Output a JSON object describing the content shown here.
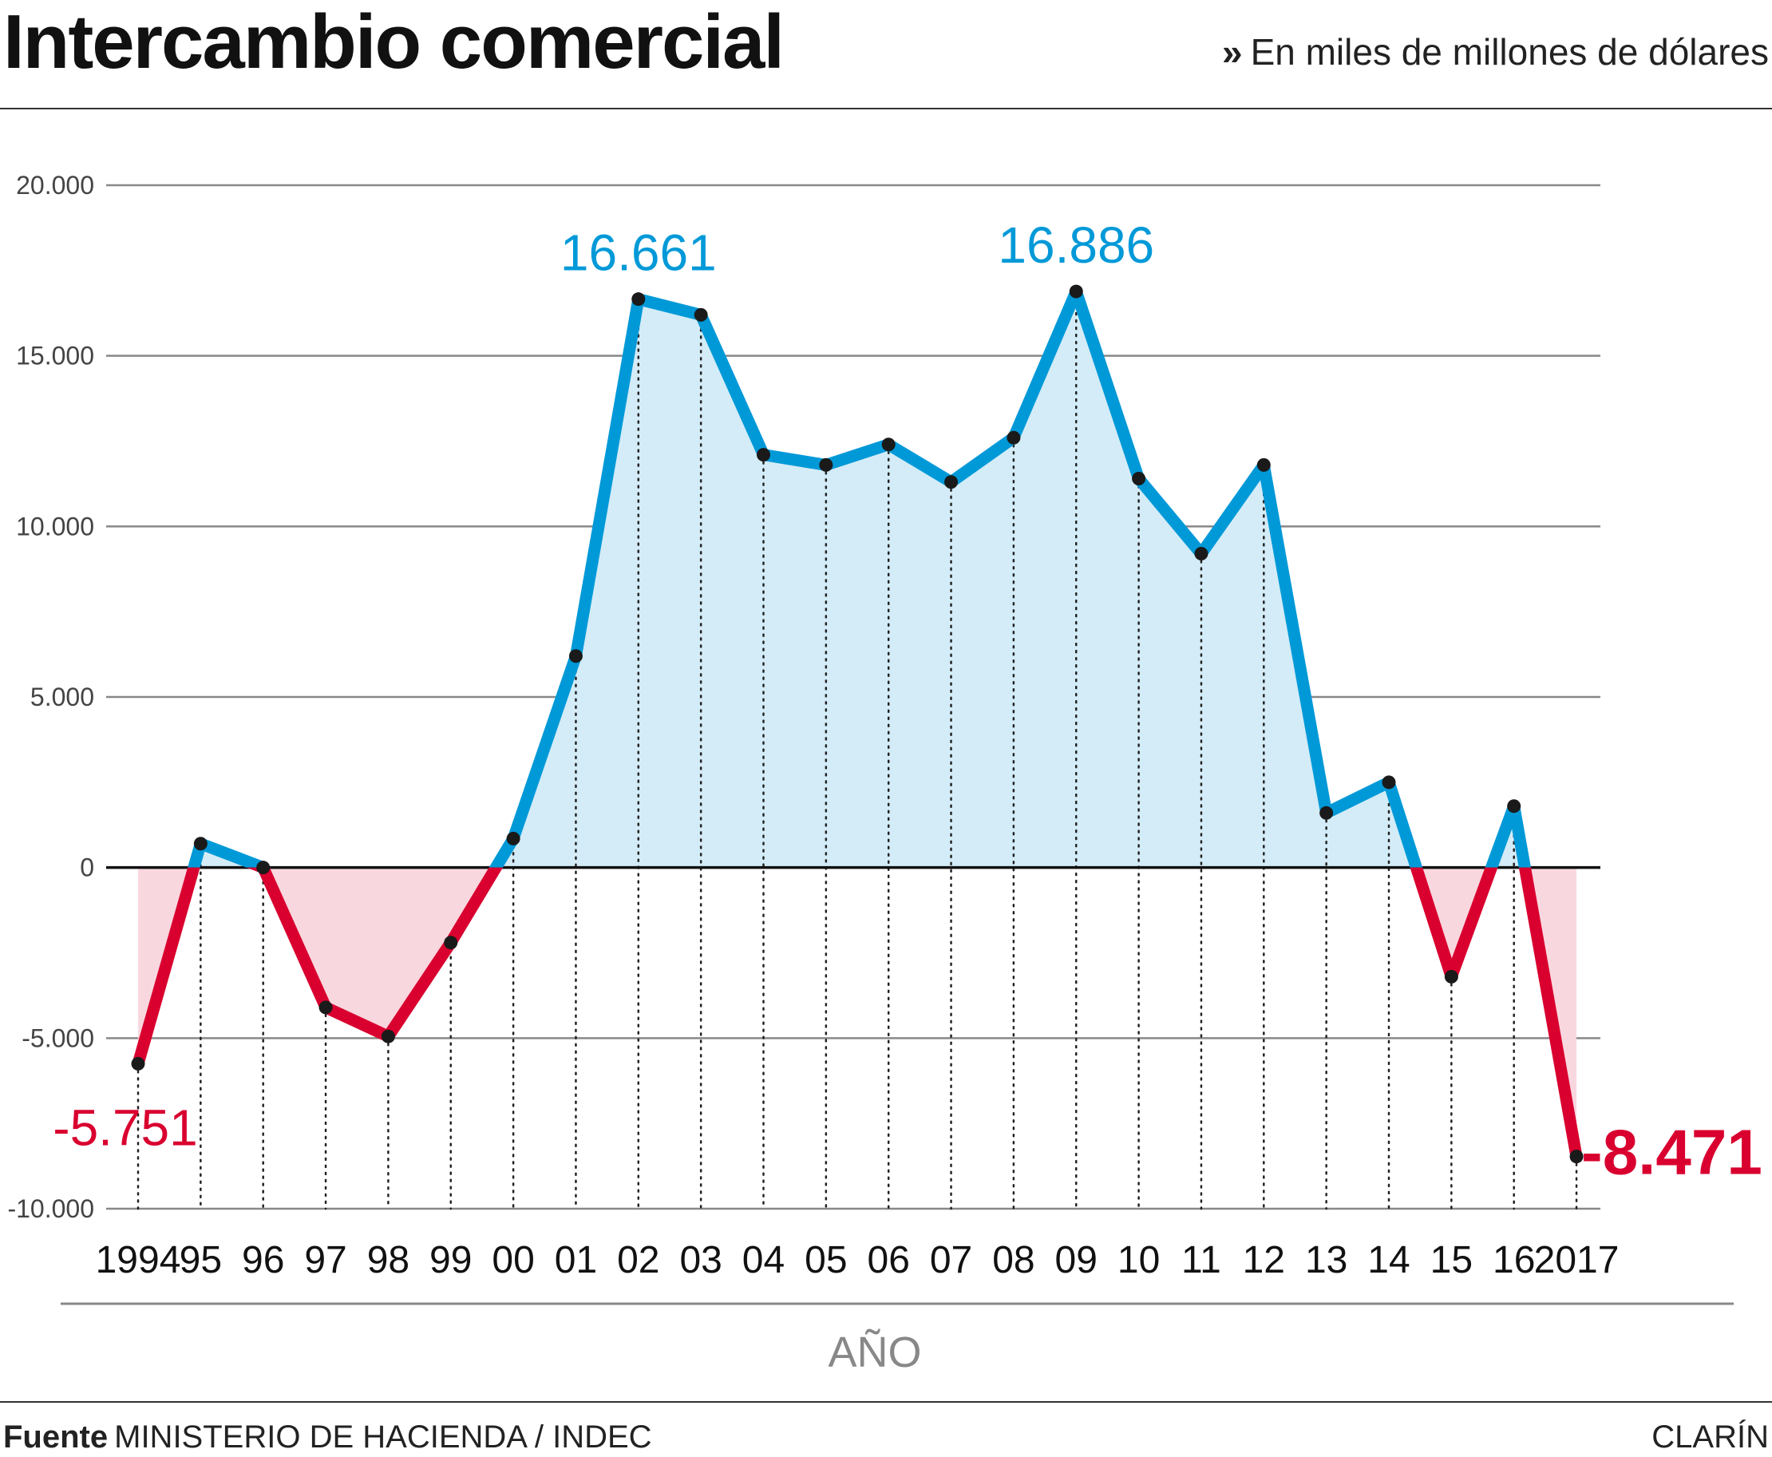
{
  "header": {
    "title": "Intercambio comercial",
    "subtitle_marker": "»",
    "subtitle": "En miles de millones de dólares"
  },
  "footer": {
    "source_label": "Fuente",
    "source_text": "MINISTERIO DE HACIENDA  /  INDEC",
    "credit": "CLARÍN"
  },
  "colors": {
    "positive_line": "#0099d8",
    "positive_fill": "#d3ecf7",
    "negative_line": "#d9002f",
    "negative_fill": "#f9d7df",
    "gridline": "#888888",
    "zero_line": "#111111",
    "point": "#1a1a1a"
  },
  "chart_data": {
    "type": "area",
    "title": "Intercambio comercial",
    "subtitle": "En miles de millones de dólares",
    "xlabel": "AÑO",
    "ylabel": "",
    "ylim": [
      -10000,
      20000
    ],
    "yticks": [
      20000,
      15000,
      10000,
      5000,
      0,
      -5000,
      -10000
    ],
    "ytick_labels": [
      "20.000",
      "15.000",
      "10.000",
      "5.000",
      "0",
      "-5.000",
      "-10.000"
    ],
    "grid": true,
    "categories": [
      "1994",
      "95",
      "96",
      "97",
      "98",
      "99",
      "00",
      "01",
      "02",
      "03",
      "04",
      "05",
      "06",
      "07",
      "08",
      "09",
      "10",
      "11",
      "12",
      "13",
      "14",
      "15",
      "16",
      "2017"
    ],
    "values": [
      -5751,
      700,
      0,
      -4100,
      -4950,
      -2200,
      850,
      6200,
      16661,
      16200,
      12100,
      11800,
      12400,
      11300,
      12600,
      16886,
      11400,
      9200,
      11800,
      1600,
      2500,
      -3200,
      1800,
      -8471
    ],
    "annotations": [
      {
        "index": 0,
        "label": "-5.751"
      },
      {
        "index": 8,
        "label": "16.661"
      },
      {
        "index": 15,
        "label": "16.886"
      },
      {
        "index": 23,
        "label": "-8.471"
      }
    ]
  }
}
